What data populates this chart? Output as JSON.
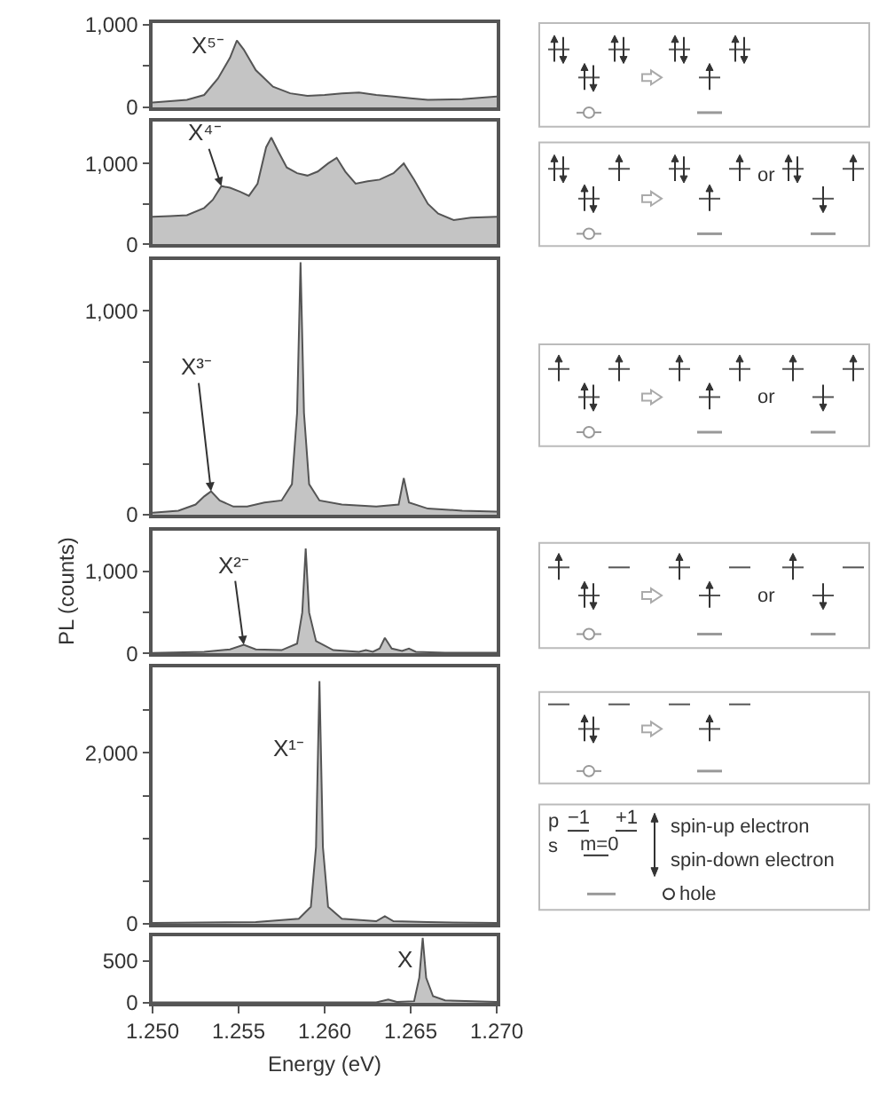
{
  "chart_data": [
    {
      "type": "area",
      "xlim": [
        1.25,
        1.27
      ],
      "ylim": [
        0,
        1020
      ],
      "yticks": [
        0,
        {
          "value": 500,
          "label": null
        },
        {
          "value": 1000,
          "label": "1,000"
        }
      ],
      "tick_labels": "y",
      "series": [
        {
          "color": "#c4c4c4",
          "x": [
            1.25,
            1.252,
            1.253,
            1.2538,
            1.2545,
            1.2549,
            1.2553,
            1.256,
            1.257,
            1.258,
            1.259,
            1.26,
            1.261,
            1.262,
            1.263,
            1.264,
            1.265,
            1.266,
            1.268,
            1.27
          ],
          "values": [
            60,
            90,
            150,
            350,
            600,
            810,
            700,
            450,
            250,
            170,
            140,
            150,
            170,
            180,
            150,
            130,
            110,
            90,
            100,
            130
          ]
        }
      ],
      "annotations": [
        "X⁵⁻"
      ]
    },
    {
      "type": "area",
      "xlim": [
        1.25,
        1.27
      ],
      "ylim": [
        0,
        1520
      ],
      "yticks": [
        0,
        {
          "value": 500,
          "label": null
        },
        {
          "value": 1000,
          "label": "1,000"
        }
      ],
      "tick_labels": "y",
      "series": [
        {
          "color": "#c4c4c4",
          "x": [
            1.25,
            1.251,
            1.252,
            1.253,
            1.2535,
            1.254,
            1.2545,
            1.2551,
            1.2556,
            1.2561,
            1.2566,
            1.2569,
            1.2573,
            1.2578,
            1.2584,
            1.259,
            1.2596,
            1.2602,
            1.2607,
            1.2612,
            1.2618,
            1.2625,
            1.2632,
            1.264,
            1.2646,
            1.2652,
            1.266,
            1.2666,
            1.2675,
            1.2685,
            1.27
          ],
          "values": [
            340,
            350,
            360,
            450,
            550,
            720,
            700,
            650,
            600,
            750,
            1200,
            1320,
            1150,
            950,
            880,
            850,
            900,
            1000,
            1070,
            900,
            750,
            780,
            800,
            880,
            1000,
            800,
            500,
            380,
            300,
            330,
            340
          ]
        }
      ],
      "annotations": [
        {
          "text": "X⁴⁻",
          "x": 1.254,
          "y": 720
        }
      ]
    },
    {
      "type": "area",
      "xlim": [
        1.25,
        1.27
      ],
      "ylim": [
        0,
        1250
      ],
      "yticks": [
        0,
        {
          "value": 250,
          "label": null
        },
        {
          "value": 500,
          "label": null
        },
        {
          "value": 750,
          "label": null
        },
        {
          "value": 1000,
          "label": "1,000"
        }
      ],
      "tick_labels": "y",
      "series": [
        {
          "color": "#c4c4c4",
          "x": [
            1.25,
            1.2515,
            1.2525,
            1.253,
            1.2534,
            1.2539,
            1.2547,
            1.2555,
            1.2565,
            1.2575,
            1.2581,
            1.2584,
            1.2586,
            1.2588,
            1.2591,
            1.2597,
            1.261,
            1.263,
            1.2643,
            1.2646,
            1.2649,
            1.266,
            1.268,
            1.27
          ],
          "values": [
            10,
            20,
            50,
            90,
            115,
            70,
            40,
            40,
            60,
            70,
            150,
            500,
            1240,
            500,
            150,
            70,
            50,
            40,
            50,
            180,
            60,
            30,
            20,
            15
          ]
        }
      ],
      "annotations": [
        {
          "text": "X³⁻",
          "x": 1.2534,
          "y": 115
        }
      ]
    },
    {
      "type": "area",
      "xlim": [
        1.25,
        1.27
      ],
      "ylim": [
        0,
        1500
      ],
      "yticks": [
        0,
        {
          "value": 500,
          "label": null
        },
        {
          "value": 1000,
          "label": "1,000"
        }
      ],
      "tick_labels": "y",
      "ylabel": "PL (counts)",
      "series": [
        {
          "color": "#c4c4c4",
          "x": [
            1.25,
            1.253,
            1.2545,
            1.2553,
            1.256,
            1.2575,
            1.2584,
            1.2587,
            1.2589,
            1.2591,
            1.2595,
            1.2605,
            1.262,
            1.2624,
            1.2628,
            1.2632,
            1.2635,
            1.2639,
            1.2645,
            1.2649,
            1.2653,
            1.267,
            1.27
          ],
          "values": [
            5,
            20,
            50,
            105,
            50,
            40,
            120,
            500,
            1280,
            500,
            150,
            40,
            20,
            40,
            20,
            60,
            190,
            60,
            30,
            60,
            20,
            10,
            10
          ]
        }
      ],
      "annotations": [
        {
          "text": "X²⁻",
          "x": 1.2553,
          "y": 105
        }
      ]
    },
    {
      "type": "area",
      "xlim": [
        1.25,
        1.27
      ],
      "ylim": [
        0,
        3000
      ],
      "yticks": [
        0,
        {
          "value": 500,
          "label": null
        },
        {
          "value": 1000,
          "label": null
        },
        {
          "value": 1500,
          "label": null
        },
        {
          "value": 2000,
          "label": "2,000"
        },
        {
          "value": 2500,
          "label": null
        }
      ],
      "tick_labels": "y",
      "series": [
        {
          "color": "#c4c4c4",
          "x": [
            1.25,
            1.256,
            1.2585,
            1.2592,
            1.2595,
            1.2597,
            1.2599,
            1.2602,
            1.261,
            1.263,
            1.2635,
            1.264,
            1.266,
            1.27
          ],
          "values": [
            10,
            20,
            60,
            200,
            900,
            2840,
            900,
            200,
            60,
            30,
            90,
            30,
            20,
            10
          ]
        }
      ],
      "annotations": [
        "X¹⁻"
      ]
    },
    {
      "type": "area",
      "xlim": [
        1.25,
        1.27
      ],
      "ylim": [
        0,
        800
      ],
      "yticks": [
        0,
        500
      ],
      "xticks": [
        {
          "value": 1.25,
          "label": "1.250"
        },
        {
          "value": 1.255,
          "label": "1.255"
        },
        {
          "value": 1.26,
          "label": "1.260"
        },
        {
          "value": 1.265,
          "label": "1.265"
        },
        {
          "value": 1.27,
          "label": "1.270"
        }
      ],
      "xlabel": "Energy (eV)",
      "series": [
        {
          "color": "#c4c4c4",
          "x": [
            1.25,
            1.263,
            1.2637,
            1.2642,
            1.2652,
            1.2655,
            1.2657,
            1.2659,
            1.2663,
            1.267,
            1.27
          ],
          "values": [
            5,
            5,
            40,
            10,
            20,
            300,
            780,
            300,
            80,
            30,
            10
          ]
        }
      ],
      "annotations": [
        "X"
      ]
    },
    {
      "type": "other",
      "annotations": [
        "or",
        "or",
        "or",
        "p",
        "−1",
        "+1",
        "s",
        "m=0",
        "spin-up electron",
        "spin-down electron",
        "hole"
      ]
    }
  ]
}
